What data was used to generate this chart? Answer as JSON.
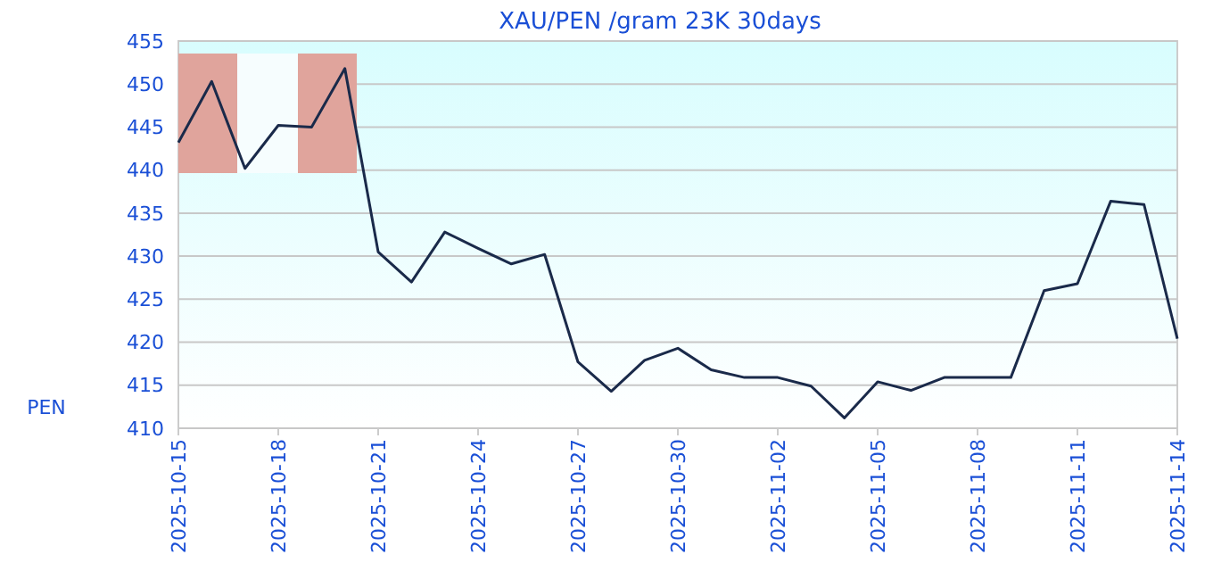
{
  "chart_data": {
    "type": "line",
    "title": "XAU/PEN /gram 23K 30days",
    "ylabel": "PEN",
    "x": [
      "2025-10-15",
      "2025-10-16",
      "2025-10-17",
      "2025-10-18",
      "2025-10-19",
      "2025-10-20",
      "2025-10-21",
      "2025-10-22",
      "2025-10-23",
      "2025-10-24",
      "2025-10-25",
      "2025-10-26",
      "2025-10-27",
      "2025-10-28",
      "2025-10-29",
      "2025-10-30",
      "2025-10-31",
      "2025-11-01",
      "2025-11-02",
      "2025-11-03",
      "2025-11-04",
      "2025-11-05",
      "2025-11-06",
      "2025-11-07",
      "2025-11-08",
      "2025-11-09",
      "2025-11-10",
      "2025-11-11",
      "2025-11-12",
      "2025-11-13",
      "2025-11-14"
    ],
    "series": [
      {
        "color": "#1a2a4a",
        "values": [
          443.2,
          450.3,
          440.2,
          445.2,
          445.0,
          451.8,
          430.5,
          427.0,
          432.8,
          430.9,
          429.1,
          430.2,
          417.7,
          414.3,
          417.9,
          419.3,
          416.8,
          415.9,
          415.9,
          414.9,
          411.2,
          415.4,
          414.4,
          415.9,
          415.9,
          415.9,
          426.0,
          426.8,
          436.4,
          436.0,
          420.4
        ]
      }
    ],
    "xlim": [
      "2025-10-15",
      "2025-11-14"
    ],
    "xticks": [
      "2025-10-15",
      "2025-10-18",
      "2025-10-21",
      "2025-10-24",
      "2025-10-27",
      "2025-10-30",
      "2025-11-02",
      "2025-11-05",
      "2025-11-08",
      "2025-11-11",
      "2025-11-14"
    ],
    "ylim": [
      410,
      455
    ],
    "yticks": [
      410,
      415,
      420,
      425,
      430,
      435,
      440,
      445,
      450,
      455
    ],
    "grid": "y",
    "marker": "none",
    "line_style": "solid"
  }
}
